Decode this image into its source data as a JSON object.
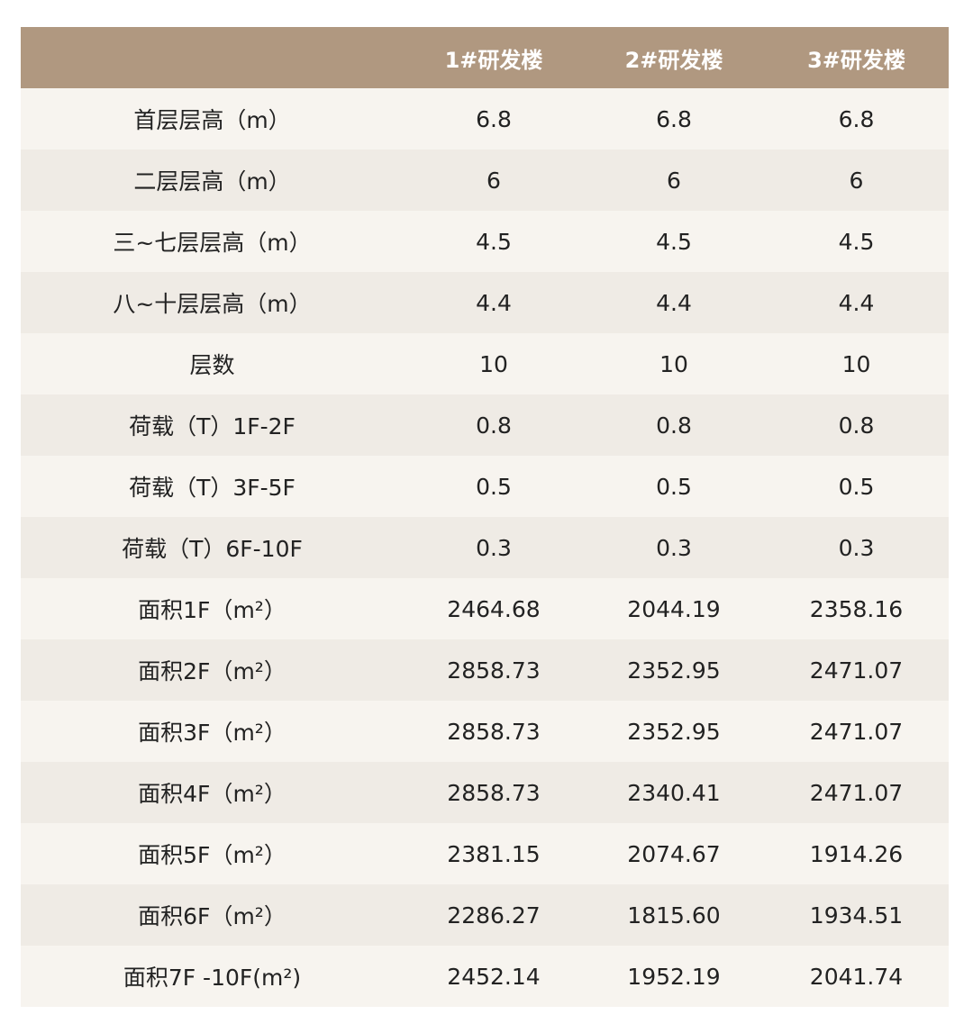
{
  "table": {
    "header": {
      "label": "",
      "columns": [
        "1#研发楼",
        "2#研发楼",
        "3#研发楼"
      ]
    },
    "rows": [
      {
        "label": "首层层高（m）",
        "values": [
          "6.8",
          "6.8",
          "6.8"
        ]
      },
      {
        "label": "二层层高（m）",
        "values": [
          "6",
          "6",
          "6"
        ]
      },
      {
        "label": "三~七层层高（m）",
        "values": [
          "4.5",
          "4.5",
          "4.5"
        ]
      },
      {
        "label": "八~十层层高（m）",
        "values": [
          "4.4",
          "4.4",
          "4.4"
        ]
      },
      {
        "label": "层数",
        "values": [
          "10",
          "10",
          "10"
        ]
      },
      {
        "label": "荷载（T）1F-2F",
        "values": [
          "0.8",
          "0.8",
          "0.8"
        ]
      },
      {
        "label": "荷载（T）3F-5F",
        "values": [
          "0.5",
          "0.5",
          "0.5"
        ]
      },
      {
        "label": "荷载（T）6F-10F",
        "values": [
          "0.3",
          "0.3",
          "0.3"
        ]
      },
      {
        "label": "面积1F（m²）",
        "values": [
          "2464.68",
          "2044.19",
          "2358.16"
        ]
      },
      {
        "label": "面积2F（m²）",
        "values": [
          "2858.73",
          "2352.95",
          "2471.07"
        ]
      },
      {
        "label": "面积3F（m²）",
        "values": [
          "2858.73",
          "2352.95",
          "2471.07"
        ]
      },
      {
        "label": "面积4F（m²）",
        "values": [
          "2858.73",
          "2340.41",
          "2471.07"
        ]
      },
      {
        "label": "面积5F（m²）",
        "values": [
          "2381.15",
          "2074.67",
          "1914.26"
        ]
      },
      {
        "label": "面积6F（m²）",
        "values": [
          "2286.27",
          "1815.60",
          "1934.51"
        ]
      },
      {
        "label": "面积7F -10F(m²)",
        "values": [
          "2452.14",
          "1952.19",
          "2041.74"
        ]
      }
    ]
  },
  "colors": {
    "header_bg": "#b09880",
    "header_text": "#ffffff",
    "row_odd_bg": "#f7f4ef",
    "row_even_bg": "#efebe5",
    "cell_text": "#222222"
  }
}
